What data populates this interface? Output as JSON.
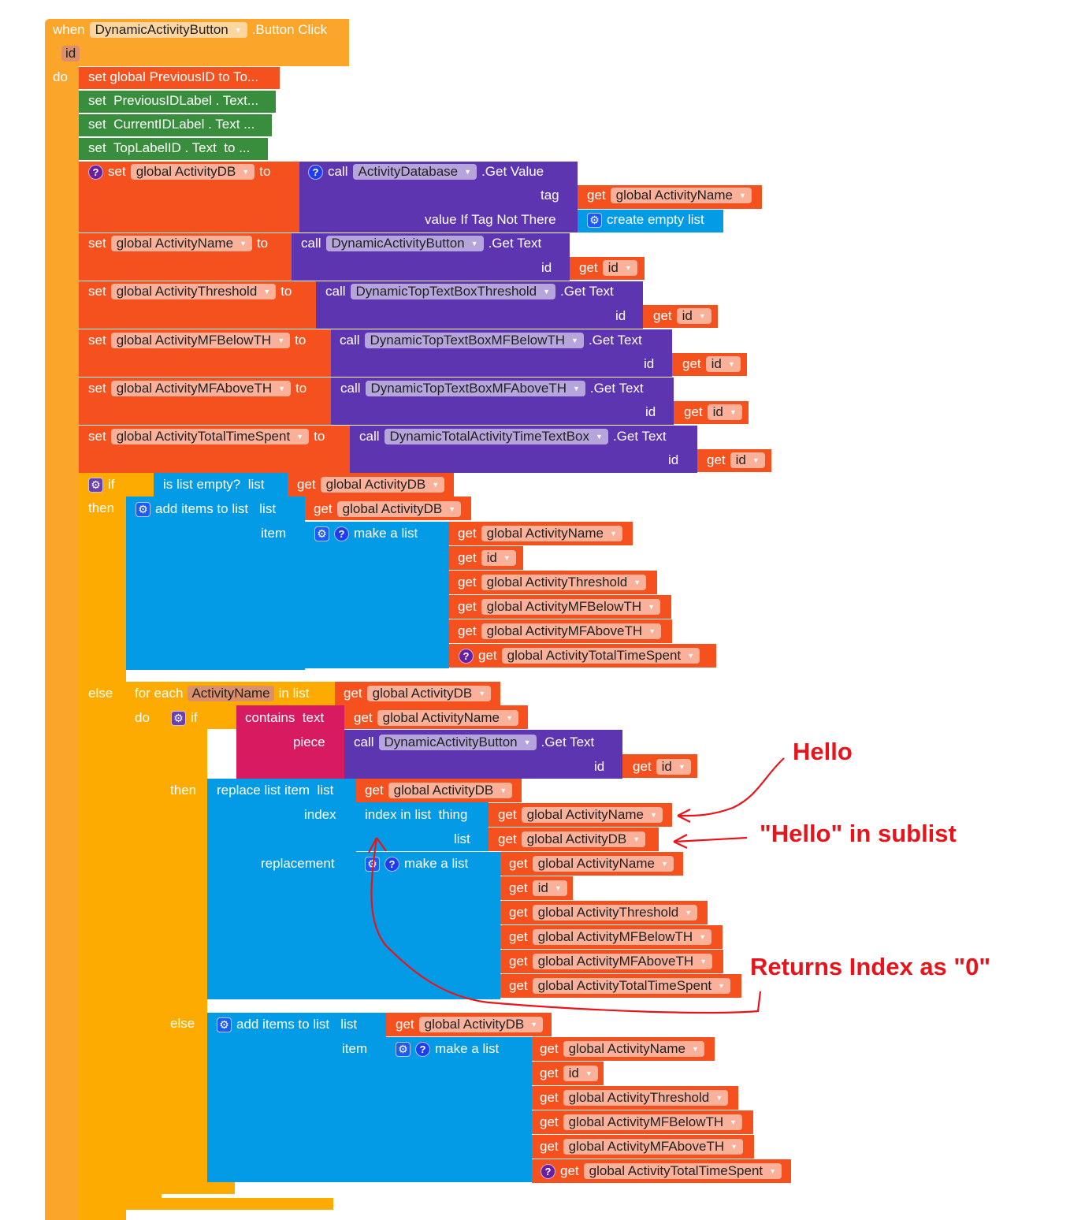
{
  "colors": {
    "event": "#FBA52B",
    "variable": "#F4511E",
    "component_setter": "#388E3C",
    "component_method": "#5E35B1",
    "list": "#039BE5",
    "control": "#FDAB00",
    "text": "#D81B60",
    "annotation": "#E8141C"
  },
  "rows": [
    [
      "when",
      {
        "dd": "DynamicActivityButton"
      },
      ".Button Click"
    ],
    [
      {
        "param": "id"
      }
    ],
    [
      "do"
    ],
    [
      "set global PreviousID to To..."
    ],
    [
      "set  PreviousIDLabel . Text..."
    ],
    [
      "set  CurrentIDLabel . Text ..."
    ],
    [
      "set  TopLabelID . Text  to ..."
    ],
    [
      {
        "icon": "help"
      },
      "set",
      {
        "dd": "global ActivityDB"
      },
      "to"
    ],
    [
      {
        "icon": "help-b"
      },
      "call",
      {
        "dd": "ActivityDatabase"
      },
      ".Get Value"
    ],
    [
      "tag"
    ],
    [
      "get",
      {
        "dd": "global ActivityName"
      }
    ],
    [
      "value If Tag Not There"
    ],
    [
      {
        "icon": "gear-b"
      },
      "create empty list"
    ],
    [
      "set",
      {
        "dd": "global ActivityName"
      },
      "to"
    ],
    [
      "call",
      {
        "dd": "DynamicActivityButton"
      },
      ".Get Text"
    ],
    [
      "id"
    ],
    [
      "get",
      {
        "dd": "id"
      }
    ],
    [
      "set",
      {
        "dd": "global ActivityThreshold"
      },
      "to"
    ],
    [
      "call",
      {
        "dd": "DynamicTopTextBoxThreshold"
      },
      ".Get Text"
    ],
    [
      "id"
    ],
    [
      "get",
      {
        "dd": "id"
      }
    ],
    [
      "set",
      {
        "dd": "global ActivityMFBelowTH"
      },
      "to"
    ],
    [
      "call",
      {
        "dd": "DynamicTopTextBoxMFBelowTH"
      },
      ".Get Text"
    ],
    [
      "id"
    ],
    [
      "get",
      {
        "dd": "id"
      }
    ],
    [
      "set",
      {
        "dd": "global ActivityMFAboveTH"
      },
      "to"
    ],
    [
      "call",
      {
        "dd": "DynamicTopTextBoxMFAboveTH"
      },
      ".Get Text"
    ],
    [
      "id"
    ],
    [
      "get",
      {
        "dd": "id"
      }
    ],
    [
      "set",
      {
        "dd": "global ActivityTotalTimeSpent"
      },
      "to"
    ],
    [
      "call",
      {
        "dd": "DynamicTotalActivityTimeTextBox"
      },
      ".Get Text"
    ],
    [
      "id"
    ],
    [
      "get",
      {
        "dd": "id"
      }
    ],
    [
      {
        "icon": "gear"
      },
      "if"
    ],
    [
      "is list empty?  list"
    ],
    [
      "get",
      {
        "dd": "global ActivityDB"
      }
    ],
    [
      "then"
    ],
    [
      {
        "icon": "gear-b"
      },
      "add items to list   list"
    ],
    [
      "get",
      {
        "dd": "global ActivityDB"
      }
    ],
    [
      "item"
    ],
    [
      {
        "icon": "gear-b"
      },
      {
        "icon": "help-b"
      },
      "make a list"
    ],
    [
      "get",
      {
        "dd": "global ActivityName"
      }
    ],
    [
      "get",
      {
        "dd": "id"
      }
    ],
    [
      "get",
      {
        "dd": "global ActivityThreshold"
      }
    ],
    [
      "get",
      {
        "dd": "global ActivityMFBelowTH"
      }
    ],
    [
      "get",
      {
        "dd": "global ActivityMFAboveTH"
      }
    ],
    [
      {
        "icon": "help"
      },
      "get",
      {
        "dd": "global ActivityTotalTimeSpent"
      }
    ],
    [
      "else"
    ],
    [
      "for each",
      {
        "param": "ActivityName"
      },
      "in list"
    ],
    [
      "get",
      {
        "dd": "global ActivityDB"
      }
    ],
    [
      "do"
    ],
    [
      {
        "icon": "gear"
      },
      "if"
    ],
    [
      "contains  text"
    ],
    [
      "get",
      {
        "dd": "global ActivityName"
      }
    ],
    [
      "piece"
    ],
    [
      "call",
      {
        "dd": "DynamicActivityButton"
      },
      ".Get Text"
    ],
    [
      "id"
    ],
    [
      "get",
      {
        "dd": "id"
      }
    ],
    [
      "then"
    ],
    [
      "replace list item  list"
    ],
    [
      "get",
      {
        "dd": "global ActivityDB"
      }
    ],
    [
      "index"
    ],
    [
      "index in list  thing"
    ],
    [
      "get",
      {
        "dd": "global ActivityName"
      }
    ],
    [
      "list"
    ],
    [
      "get",
      {
        "dd": "global ActivityDB"
      }
    ],
    [
      "replacement"
    ],
    [
      {
        "icon": "gear-b"
      },
      {
        "icon": "help-b"
      },
      "make a list"
    ],
    [
      "get",
      {
        "dd": "global ActivityName"
      }
    ],
    [
      "get",
      {
        "dd": "id"
      }
    ],
    [
      "get",
      {
        "dd": "global ActivityThreshold"
      }
    ],
    [
      "get",
      {
        "dd": "global ActivityMFBelowTH"
      }
    ],
    [
      "get",
      {
        "dd": "global ActivityMFAboveTH"
      }
    ],
    [
      "get",
      {
        "dd": "global ActivityTotalTimeSpent"
      }
    ],
    [
      "else"
    ],
    [
      {
        "icon": "gear-b"
      },
      "add items to list   list"
    ],
    [
      "get",
      {
        "dd": "global ActivityDB"
      }
    ],
    [
      "item"
    ],
    [
      {
        "icon": "gear-b"
      },
      {
        "icon": "help-b"
      },
      "make a list"
    ],
    [
      "get",
      {
        "dd": "global ActivityName"
      }
    ],
    [
      "get",
      {
        "dd": "id"
      }
    ],
    [
      "get",
      {
        "dd": "global ActivityThreshold"
      }
    ],
    [
      "get",
      {
        "dd": "global ActivityMFBelowTH"
      }
    ],
    [
      "get",
      {
        "dd": "global ActivityMFAboveTH"
      }
    ],
    [
      {
        "icon": "help"
      },
      "get",
      {
        "dd": "global ActivityTotalTimeSpent"
      }
    ]
  ],
  "annotations": {
    "hello": "Hello",
    "hello_in_sublist": "\"Hello\" in sublist",
    "returns_index": "Returns Index as \"0\""
  }
}
